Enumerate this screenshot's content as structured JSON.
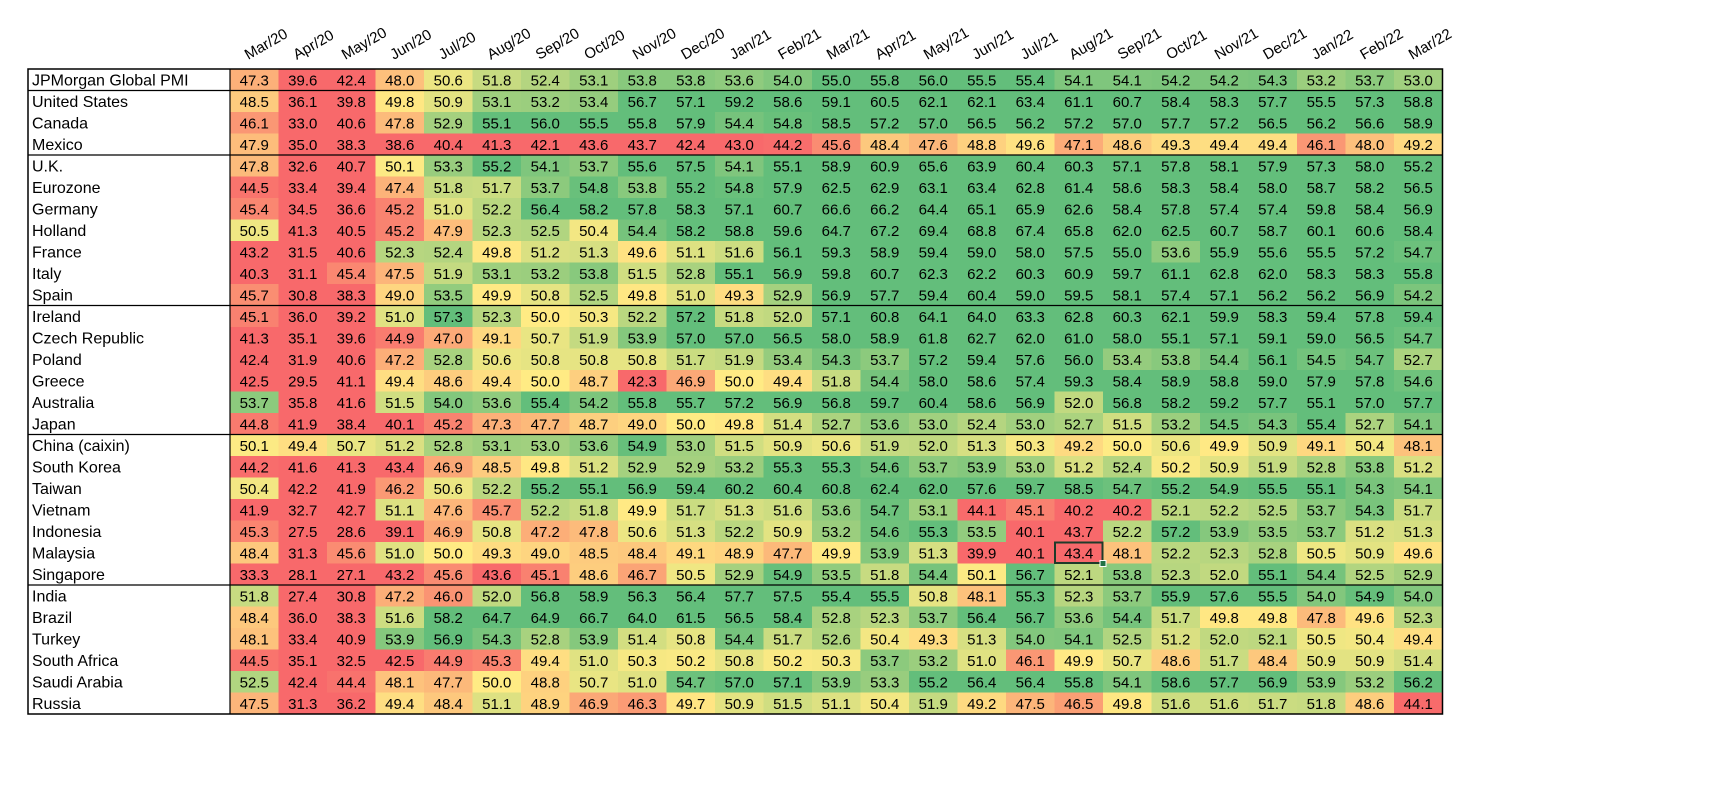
{
  "chart_data": {
    "type": "heatmap",
    "columns": [
      "Mar/20",
      "Apr/20",
      "May/20",
      "Jun/20",
      "Jul/20",
      "Aug/20",
      "Sep/20",
      "Oct/20",
      "Nov/20",
      "Dec/20",
      "Jan/21",
      "Feb/21",
      "Mar/21",
      "Apr/21",
      "May/21",
      "Jun/21",
      "Jul/21",
      "Aug/21",
      "Sep/21",
      "Oct/21",
      "Nov/21",
      "Dec/21",
      "Jan/22",
      "Feb/22",
      "Mar/22"
    ],
    "rows": [
      {
        "label": "JPMorgan Global PMI",
        "values": [
          47.3,
          39.6,
          42.4,
          48.0,
          50.6,
          51.8,
          52.4,
          53.1,
          53.8,
          53.8,
          53.6,
          54.0,
          55.0,
          55.8,
          56.0,
          55.5,
          55.4,
          54.1,
          54.1,
          54.2,
          54.2,
          54.3,
          53.2,
          53.7,
          53.0
        ]
      },
      {
        "label": "United States",
        "values": [
          48.5,
          36.1,
          39.8,
          49.8,
          50.9,
          53.1,
          53.2,
          53.4,
          56.7,
          57.1,
          59.2,
          58.6,
          59.1,
          60.5,
          62.1,
          62.1,
          63.4,
          61.1,
          60.7,
          58.4,
          58.3,
          57.7,
          55.5,
          57.3,
          58.8
        ]
      },
      {
        "label": "Canada",
        "values": [
          46.1,
          33.0,
          40.6,
          47.8,
          52.9,
          55.1,
          56.0,
          55.5,
          55.8,
          57.9,
          54.4,
          54.8,
          58.5,
          57.2,
          57.0,
          56.5,
          56.2,
          57.2,
          57.0,
          57.7,
          57.2,
          56.5,
          56.2,
          56.6,
          58.9
        ]
      },
      {
        "label": "Mexico",
        "values": [
          47.9,
          35.0,
          38.3,
          38.6,
          40.4,
          41.3,
          42.1,
          43.6,
          43.7,
          42.4,
          43.0,
          44.2,
          45.6,
          48.4,
          47.6,
          48.8,
          49.6,
          47.1,
          48.6,
          49.3,
          49.4,
          49.4,
          46.1,
          48.0,
          49.2
        ]
      },
      {
        "label": "U.K.",
        "values": [
          47.8,
          32.6,
          40.7,
          50.1,
          53.3,
          55.2,
          54.1,
          53.7,
          55.6,
          57.5,
          54.1,
          55.1,
          58.9,
          60.9,
          65.6,
          63.9,
          60.4,
          60.3,
          57.1,
          57.8,
          58.1,
          57.9,
          57.3,
          58.0,
          55.2
        ]
      },
      {
        "label": "Eurozone",
        "values": [
          44.5,
          33.4,
          39.4,
          47.4,
          51.8,
          51.7,
          53.7,
          54.8,
          53.8,
          55.2,
          54.8,
          57.9,
          62.5,
          62.9,
          63.1,
          63.4,
          62.8,
          61.4,
          58.6,
          58.3,
          58.4,
          58.0,
          58.7,
          58.2,
          56.5
        ]
      },
      {
        "label": "Germany",
        "values": [
          45.4,
          34.5,
          36.6,
          45.2,
          51.0,
          52.2,
          56.4,
          58.2,
          57.8,
          58.3,
          57.1,
          60.7,
          66.6,
          66.2,
          64.4,
          65.1,
          65.9,
          62.6,
          58.4,
          57.8,
          57.4,
          57.4,
          59.8,
          58.4,
          56.9
        ]
      },
      {
        "label": "Holland",
        "values": [
          50.5,
          41.3,
          40.5,
          45.2,
          47.9,
          52.3,
          52.5,
          50.4,
          54.4,
          58.2,
          58.8,
          59.6,
          64.7,
          67.2,
          69.4,
          68.8,
          67.4,
          65.8,
          62.0,
          62.5,
          60.7,
          58.7,
          60.1,
          60.6,
          58.4
        ]
      },
      {
        "label": "France",
        "values": [
          43.2,
          31.5,
          40.6,
          52.3,
          52.4,
          49.8,
          51.2,
          51.3,
          49.6,
          51.1,
          51.6,
          56.1,
          59.3,
          58.9,
          59.4,
          59.0,
          58.0,
          57.5,
          55.0,
          53.6,
          55.9,
          55.6,
          55.5,
          57.2,
          54.7
        ]
      },
      {
        "label": "Italy",
        "values": [
          40.3,
          31.1,
          45.4,
          47.5,
          51.9,
          53.1,
          53.2,
          53.8,
          51.5,
          52.8,
          55.1,
          56.9,
          59.8,
          60.7,
          62.3,
          62.2,
          60.3,
          60.9,
          59.7,
          61.1,
          62.8,
          62.0,
          58.3,
          58.3,
          55.8
        ]
      },
      {
        "label": "Spain",
        "values": [
          45.7,
          30.8,
          38.3,
          49.0,
          53.5,
          49.9,
          50.8,
          52.5,
          49.8,
          51.0,
          49.3,
          52.9,
          56.9,
          57.7,
          59.4,
          60.4,
          59.0,
          59.5,
          58.1,
          57.4,
          57.1,
          56.2,
          56.2,
          56.9,
          54.2
        ]
      },
      {
        "label": "Ireland",
        "values": [
          45.1,
          36.0,
          39.2,
          51.0,
          57.3,
          52.3,
          50.0,
          50.3,
          52.2,
          57.2,
          51.8,
          52.0,
          57.1,
          60.8,
          64.1,
          64.0,
          63.3,
          62.8,
          60.3,
          62.1,
          59.9,
          58.3,
          59.4,
          57.8,
          59.4
        ]
      },
      {
        "label": "Czech Republic",
        "values": [
          41.3,
          35.1,
          39.6,
          44.9,
          47.0,
          49.1,
          50.7,
          51.9,
          53.9,
          57.0,
          57.0,
          56.5,
          58.0,
          58.9,
          61.8,
          62.7,
          62.0,
          61.0,
          58.0,
          55.1,
          57.1,
          59.1,
          59.0,
          56.5,
          54.7
        ]
      },
      {
        "label": "Poland",
        "values": [
          42.4,
          31.9,
          40.6,
          47.2,
          52.8,
          50.6,
          50.8,
          50.8,
          50.8,
          51.7,
          51.9,
          53.4,
          54.3,
          53.7,
          57.2,
          59.4,
          57.6,
          56.0,
          53.4,
          53.8,
          54.4,
          56.1,
          54.5,
          54.7,
          52.7
        ]
      },
      {
        "label": "Greece",
        "values": [
          42.5,
          29.5,
          41.1,
          49.4,
          48.6,
          49.4,
          50.0,
          48.7,
          42.3,
          46.9,
          50.0,
          49.4,
          51.8,
          54.4,
          58.0,
          58.6,
          57.4,
          59.3,
          58.4,
          58.9,
          58.8,
          59.0,
          57.9,
          57.8,
          54.6
        ]
      },
      {
        "label": "Australia",
        "values": [
          53.7,
          35.8,
          41.6,
          51.5,
          54.0,
          53.6,
          55.4,
          54.2,
          55.8,
          55.7,
          57.2,
          56.9,
          56.8,
          59.7,
          60.4,
          58.6,
          56.9,
          52.0,
          56.8,
          58.2,
          59.2,
          57.7,
          55.1,
          57.0,
          57.7
        ]
      },
      {
        "label": "Japan",
        "values": [
          44.8,
          41.9,
          38.4,
          40.1,
          45.2,
          47.3,
          47.7,
          48.7,
          49.0,
          50.0,
          49.8,
          51.4,
          52.7,
          53.6,
          53.0,
          52.4,
          53.0,
          52.7,
          51.5,
          53.2,
          54.5,
          54.3,
          55.4,
          52.7,
          54.1
        ]
      },
      {
        "label": "China (caixin)",
        "values": [
          50.1,
          49.4,
          50.7,
          51.2,
          52.8,
          53.1,
          53.0,
          53.6,
          54.9,
          53.0,
          51.5,
          50.9,
          50.6,
          51.9,
          52.0,
          51.3,
          50.3,
          49.2,
          50.0,
          50.6,
          49.9,
          50.9,
          49.1,
          50.4,
          48.1
        ]
      },
      {
        "label": "South Korea",
        "values": [
          44.2,
          41.6,
          41.3,
          43.4,
          46.9,
          48.5,
          49.8,
          51.2,
          52.9,
          52.9,
          53.2,
          55.3,
          55.3,
          54.6,
          53.7,
          53.9,
          53.0,
          51.2,
          52.4,
          50.2,
          50.9,
          51.9,
          52.8,
          53.8,
          51.2
        ]
      },
      {
        "label": "Taiwan",
        "values": [
          50.4,
          42.2,
          41.9,
          46.2,
          50.6,
          52.2,
          55.2,
          55.1,
          56.9,
          59.4,
          60.2,
          60.4,
          60.8,
          62.4,
          62.0,
          57.6,
          59.7,
          58.5,
          54.7,
          55.2,
          54.9,
          55.5,
          55.1,
          54.3,
          54.1
        ]
      },
      {
        "label": "Vietnam",
        "values": [
          41.9,
          32.7,
          42.7,
          51.1,
          47.6,
          45.7,
          52.2,
          51.8,
          49.9,
          51.7,
          51.3,
          51.6,
          53.6,
          54.7,
          53.1,
          44.1,
          45.1,
          40.2,
          40.2,
          52.1,
          52.2,
          52.5,
          53.7,
          54.3,
          51.7
        ]
      },
      {
        "label": "Indonesia",
        "values": [
          45.3,
          27.5,
          28.6,
          39.1,
          46.9,
          50.8,
          47.2,
          47.8,
          50.6,
          51.3,
          52.2,
          50.9,
          53.2,
          54.6,
          55.3,
          53.5,
          40.1,
          43.7,
          52.2,
          57.2,
          53.9,
          53.5,
          53.7,
          51.2,
          51.3
        ]
      },
      {
        "label": "Malaysia",
        "values": [
          48.4,
          31.3,
          45.6,
          51.0,
          50.0,
          49.3,
          49.0,
          48.5,
          48.4,
          49.1,
          48.9,
          47.7,
          49.9,
          53.9,
          51.3,
          39.9,
          40.1,
          43.4,
          48.1,
          52.2,
          52.3,
          52.8,
          50.5,
          50.9,
          49.6
        ]
      },
      {
        "label": "Singapore",
        "values": [
          33.3,
          28.1,
          27.1,
          43.2,
          45.6,
          43.6,
          45.1,
          48.6,
          46.7,
          50.5,
          52.9,
          54.9,
          53.5,
          51.8,
          54.4,
          50.1,
          56.7,
          52.1,
          53.8,
          52.3,
          52.0,
          55.1,
          54.4,
          52.5,
          52.9
        ]
      },
      {
        "label": "India",
        "values": [
          51.8,
          27.4,
          30.8,
          47.2,
          46.0,
          52.0,
          56.8,
          58.9,
          56.3,
          56.4,
          57.7,
          57.5,
          55.4,
          55.5,
          50.8,
          48.1,
          55.3,
          52.3,
          53.7,
          55.9,
          57.6,
          55.5,
          54.0,
          54.9,
          54.0
        ]
      },
      {
        "label": "Brazil",
        "values": [
          48.4,
          36.0,
          38.3,
          51.6,
          58.2,
          64.7,
          64.9,
          66.7,
          64.0,
          61.5,
          56.5,
          58.4,
          52.8,
          52.3,
          53.7,
          56.4,
          56.7,
          53.6,
          54.4,
          51.7,
          49.8,
          49.8,
          47.8,
          49.6,
          52.3
        ]
      },
      {
        "label": "Turkey",
        "values": [
          48.1,
          33.4,
          40.9,
          53.9,
          56.9,
          54.3,
          52.8,
          53.9,
          51.4,
          50.8,
          54.4,
          51.7,
          52.6,
          50.4,
          49.3,
          51.3,
          54.0,
          54.1,
          52.5,
          51.2,
          52.0,
          52.1,
          50.5,
          50.4,
          49.4
        ]
      },
      {
        "label": "South Africa",
        "values": [
          44.5,
          35.1,
          32.5,
          42.5,
          44.9,
          45.3,
          49.4,
          51.0,
          50.3,
          50.2,
          50.8,
          50.2,
          50.3,
          53.7,
          53.2,
          51.0,
          46.1,
          49.9,
          50.7,
          48.6,
          51.7,
          48.4,
          50.9,
          50.9,
          51.4
        ]
      },
      {
        "label": "Saudi Arabia",
        "values": [
          52.5,
          42.4,
          44.4,
          48.1,
          47.7,
          50.0,
          48.8,
          50.7,
          51.0,
          54.7,
          57.0,
          57.1,
          53.9,
          53.3,
          55.2,
          56.4,
          56.4,
          55.8,
          54.1,
          58.6,
          57.7,
          56.9,
          53.9,
          53.2,
          56.2
        ]
      },
      {
        "label": "Russia",
        "values": [
          47.5,
          31.3,
          36.2,
          49.4,
          48.4,
          51.1,
          48.9,
          46.9,
          46.3,
          49.7,
          50.9,
          51.5,
          51.1,
          50.4,
          51.9,
          49.2,
          47.5,
          46.5,
          49.8,
          51.6,
          51.6,
          51.7,
          51.8,
          48.6,
          44.1
        ]
      }
    ],
    "color_scale": {
      "low": "#f8696b",
      "mid": "#ffeb84",
      "high": "#63be7b",
      "low_value": 44,
      "mid_value": 50,
      "high_value": 55
    },
    "group_breaks_after": [
      "JPMorgan Global PMI",
      "Mexico",
      "Spain",
      "Japan",
      "Singapore"
    ],
    "selected_cell": {
      "row": "Malaysia",
      "column": "Aug/21"
    }
  }
}
